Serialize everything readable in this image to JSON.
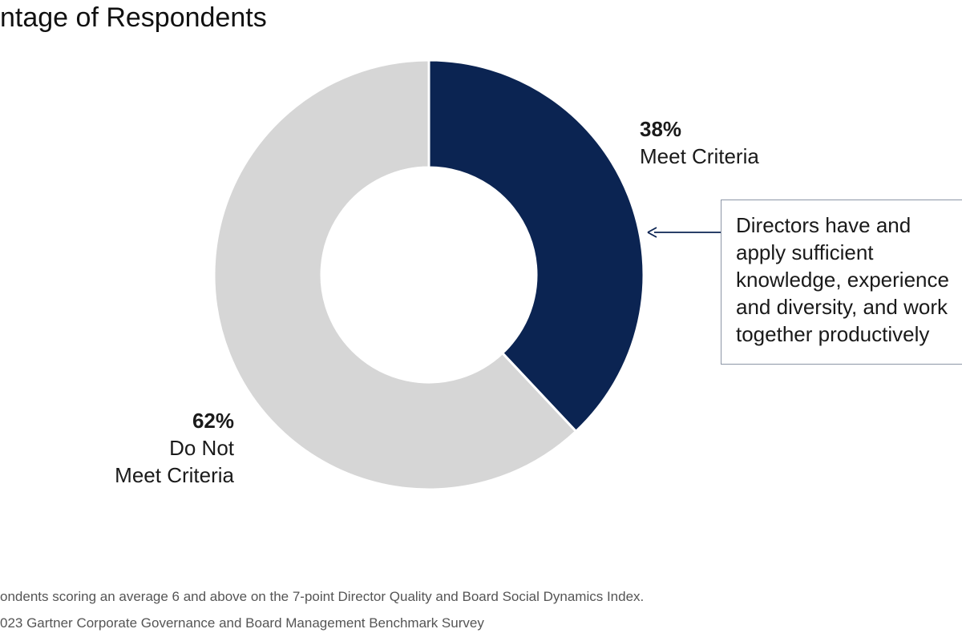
{
  "chart_data": {
    "type": "pie",
    "title": "ntage of Respondents",
    "slices": [
      {
        "label": "Meet Criteria",
        "value": 38,
        "display": "38%",
        "color": "#0b2452"
      },
      {
        "label": "Do Not\nMeet Criteria",
        "value": 62,
        "display": "62%",
        "color": "#d6d6d6"
      }
    ],
    "donut": true,
    "annotation": "Directors have and\napply sufficient\nknowledge, experience\nand diversity, and work\ntogether productively",
    "annotation_target": "Meet Criteria"
  },
  "footnotes": [
    "ondents scoring an average 6 and above on the 7-point Director Quality and Board Social Dynamics Index.",
    "023 Gartner Corporate Governance and Board Management Benchmark Survey"
  ],
  "colors": {
    "arrow": "#0b2452",
    "callout_border": "#8c96a6"
  }
}
